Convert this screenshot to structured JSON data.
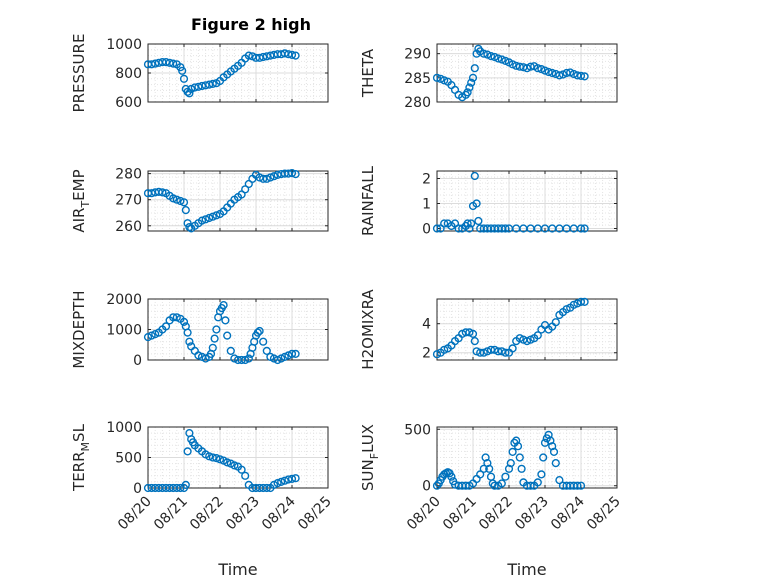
{
  "figure": {
    "title": "Figure 2 high",
    "marker_color": "#0072BD",
    "grid": "on",
    "marker": "open-circle"
  },
  "chart_data": [
    {
      "type": "scatter",
      "ylabel": "PRESSURE",
      "xlabel": "",
      "ylim": [
        600,
        1000
      ],
      "yticks": [
        600,
        800,
        1000
      ],
      "xlim": [
        0,
        5
      ],
      "series": [
        {
          "x": [
            0.0,
            0.1,
            0.2,
            0.3,
            0.4,
            0.5,
            0.6,
            0.7,
            0.8,
            0.9,
            0.95,
            1.0,
            1.05,
            1.1,
            1.15,
            1.2,
            1.3,
            1.4,
            1.5,
            1.6,
            1.7,
            1.8,
            1.9,
            2.0,
            2.1,
            2.2,
            2.3,
            2.4,
            2.5,
            2.6,
            2.7,
            2.8,
            2.9,
            3.0,
            3.1,
            3.2,
            3.3,
            3.4,
            3.5,
            3.6,
            3.7,
            3.8,
            3.9,
            4.0,
            4.1
          ],
          "y": [
            860,
            860,
            865,
            870,
            875,
            875,
            870,
            865,
            860,
            840,
            815,
            760,
            690,
            670,
            660,
            690,
            700,
            705,
            710,
            715,
            720,
            725,
            730,
            745,
            770,
            790,
            810,
            830,
            850,
            870,
            900,
            920,
            915,
            905,
            905,
            910,
            915,
            920,
            925,
            930,
            930,
            935,
            930,
            925,
            920
          ]
        }
      ]
    },
    {
      "type": "scatter",
      "ylabel": "THETA",
      "xlabel": "",
      "ylim": [
        280,
        292
      ],
      "yticks": [
        280,
        285,
        290
      ],
      "xlim": [
        0,
        5
      ],
      "series": [
        {
          "x": [
            0.0,
            0.1,
            0.2,
            0.3,
            0.4,
            0.5,
            0.6,
            0.7,
            0.8,
            0.85,
            0.9,
            0.95,
            1.0,
            1.05,
            1.1,
            1.15,
            1.2,
            1.3,
            1.4,
            1.5,
            1.6,
            1.7,
            1.8,
            1.9,
            2.0,
            2.1,
            2.2,
            2.3,
            2.4,
            2.5,
            2.6,
            2.7,
            2.8,
            2.9,
            3.0,
            3.1,
            3.2,
            3.3,
            3.4,
            3.5,
            3.6,
            3.7,
            3.8,
            3.9,
            4.0,
            4.1
          ],
          "y": [
            285,
            284.8,
            284.5,
            284.2,
            283.5,
            282.5,
            281.5,
            281,
            281.5,
            282,
            283,
            284,
            285,
            287,
            290,
            291,
            290.5,
            290,
            289.8,
            289.5,
            289.3,
            289,
            288.8,
            288.5,
            288.2,
            287.8,
            287.5,
            287.3,
            287.2,
            287,
            287.3,
            287.4,
            287,
            286.8,
            286.5,
            286.2,
            286,
            285.8,
            285.5,
            285.7,
            286,
            286.1,
            285.8,
            285.5,
            285.4,
            285.3
          ]
        }
      ]
    },
    {
      "type": "scatter",
      "ylabel": "AIR_TEMP",
      "xlabel": "",
      "ylim": [
        258,
        281
      ],
      "yticks": [
        260,
        270,
        280
      ],
      "xlim": [
        0,
        5
      ],
      "series": [
        {
          "x": [
            0.0,
            0.1,
            0.2,
            0.3,
            0.4,
            0.5,
            0.6,
            0.7,
            0.8,
            0.9,
            1.0,
            1.05,
            1.1,
            1.15,
            1.2,
            1.3,
            1.4,
            1.5,
            1.6,
            1.7,
            1.8,
            1.9,
            2.0,
            2.1,
            2.2,
            2.3,
            2.4,
            2.5,
            2.6,
            2.7,
            2.8,
            2.9,
            3.0,
            3.1,
            3.2,
            3.3,
            3.4,
            3.5,
            3.6,
            3.7,
            3.8,
            3.9,
            4.0,
            4.1
          ],
          "y": [
            272.5,
            272.5,
            272.8,
            273,
            272.8,
            272.5,
            271.5,
            270.5,
            270,
            269.5,
            269,
            266,
            261,
            259.5,
            259,
            260,
            261,
            262,
            262.5,
            263,
            263.5,
            264,
            264.5,
            265.5,
            267,
            268.5,
            270,
            271,
            272,
            274,
            276,
            278,
            279.5,
            278.5,
            278,
            278,
            278.5,
            279,
            279.5,
            279.8,
            280,
            280,
            280.2,
            279.8
          ]
        }
      ]
    },
    {
      "type": "scatter",
      "ylabel": "RAINFALL",
      "xlabel": "",
      "ylim": [
        -0.1,
        2.3
      ],
      "yticks": [
        0,
        1,
        2
      ],
      "xlim": [
        0,
        5
      ],
      "series": [
        {
          "x": [
            0.0,
            0.1,
            0.2,
            0.3,
            0.4,
            0.5,
            0.6,
            0.7,
            0.8,
            0.85,
            0.9,
            0.95,
            1.0,
            1.05,
            1.1,
            1.15,
            1.2,
            1.3,
            1.4,
            1.5,
            1.6,
            1.7,
            1.8,
            1.9,
            2.0,
            2.2,
            2.4,
            2.6,
            2.8,
            3.0,
            3.2,
            3.4,
            3.6,
            3.8,
            4.0,
            4.1
          ],
          "y": [
            0,
            0,
            0.2,
            0.2,
            0.1,
            0.2,
            0,
            0,
            0.1,
            0.2,
            0,
            0.2,
            0.9,
            2.1,
            1.0,
            0.3,
            0,
            0,
            0,
            0,
            0,
            0,
            0,
            0,
            0,
            0,
            0,
            0,
            0,
            0,
            0,
            0,
            0,
            0,
            0,
            0
          ]
        }
      ]
    },
    {
      "type": "scatter",
      "ylabel": "MIXDEPTH",
      "xlabel": "",
      "ylim": [
        0,
        2000
      ],
      "yticks": [
        0,
        1000,
        2000
      ],
      "xlim": [
        0,
        5
      ],
      "series": [
        {
          "x": [
            0.0,
            0.1,
            0.2,
            0.3,
            0.4,
            0.5,
            0.6,
            0.7,
            0.8,
            0.9,
            1.0,
            1.05,
            1.1,
            1.15,
            1.2,
            1.3,
            1.4,
            1.5,
            1.6,
            1.7,
            1.75,
            1.8,
            1.85,
            1.9,
            1.95,
            2.0,
            2.05,
            2.1,
            2.15,
            2.2,
            2.3,
            2.4,
            2.5,
            2.6,
            2.7,
            2.8,
            2.85,
            2.9,
            2.95,
            3.0,
            3.05,
            3.1,
            3.2,
            3.3,
            3.4,
            3.5,
            3.6,
            3.7,
            3.8,
            3.9,
            4.0,
            4.1
          ],
          "y": [
            750,
            800,
            850,
            900,
            1000,
            1100,
            1300,
            1400,
            1400,
            1350,
            1250,
            1100,
            900,
            600,
            450,
            300,
            150,
            100,
            50,
            100,
            200,
            400,
            700,
            1000,
            1400,
            1600,
            1700,
            1800,
            1300,
            800,
            300,
            50,
            0,
            0,
            0,
            50,
            200,
            400,
            600,
            800,
            900,
            950,
            600,
            300,
            100,
            50,
            0,
            50,
            100,
            150,
            200,
            200
          ]
        }
      ]
    },
    {
      "type": "scatter",
      "ylabel": "H2OMIXRA",
      "xlabel": "",
      "ylim": [
        1.5,
        5.7
      ],
      "yticks": [
        2,
        4
      ],
      "xlim": [
        0,
        5
      ],
      "series": [
        {
          "x": [
            0.0,
            0.1,
            0.2,
            0.3,
            0.4,
            0.5,
            0.6,
            0.7,
            0.8,
            0.9,
            1.0,
            1.05,
            1.1,
            1.2,
            1.3,
            1.4,
            1.5,
            1.6,
            1.7,
            1.8,
            1.9,
            2.0,
            2.1,
            2.2,
            2.3,
            2.4,
            2.5,
            2.6,
            2.7,
            2.8,
            2.9,
            3.0,
            3.1,
            3.2,
            3.3,
            3.4,
            3.5,
            3.6,
            3.7,
            3.8,
            3.9,
            4.0,
            4.1
          ],
          "y": [
            1.9,
            2.0,
            2.2,
            2.3,
            2.5,
            2.8,
            3.0,
            3.3,
            3.4,
            3.4,
            3.3,
            2.8,
            2.1,
            2.0,
            2.0,
            2.1,
            2.2,
            2.2,
            2.1,
            2.1,
            2.0,
            2.0,
            2.3,
            2.8,
            3.0,
            2.9,
            2.8,
            2.9,
            3.0,
            3.2,
            3.6,
            3.9,
            3.6,
            3.8,
            4.1,
            4.6,
            4.8,
            5.0,
            5.1,
            5.3,
            5.4,
            5.5,
            5.5
          ]
        }
      ]
    },
    {
      "type": "scatter",
      "ylabel": "TERR_MSL",
      "xlabel": "Time",
      "ylim": [
        0,
        1000
      ],
      "yticks": [
        0,
        500,
        1000
      ],
      "xlim": [
        0,
        5
      ],
      "xticklabels": [
        "08/20",
        "08/21",
        "08/22",
        "08/23",
        "08/24",
        "08/25"
      ],
      "series": [
        {
          "x": [
            0.0,
            0.1,
            0.2,
            0.3,
            0.4,
            0.5,
            0.6,
            0.7,
            0.8,
            0.9,
            1.0,
            1.05,
            1.1,
            1.15,
            1.2,
            1.25,
            1.3,
            1.4,
            1.5,
            1.6,
            1.7,
            1.8,
            1.9,
            2.0,
            2.1,
            2.2,
            2.3,
            2.4,
            2.5,
            2.6,
            2.7,
            2.8,
            2.9,
            3.0,
            3.1,
            3.2,
            3.3,
            3.4,
            3.5,
            3.6,
            3.7,
            3.8,
            3.9,
            4.0,
            4.1
          ],
          "y": [
            0,
            0,
            0,
            0,
            0,
            0,
            0,
            0,
            0,
            0,
            0,
            50,
            600,
            900,
            800,
            750,
            700,
            650,
            600,
            550,
            520,
            500,
            490,
            470,
            450,
            420,
            400,
            370,
            350,
            300,
            200,
            50,
            0,
            0,
            0,
            0,
            0,
            0,
            50,
            80,
            100,
            120,
            140,
            150,
            160
          ]
        }
      ]
    },
    {
      "type": "scatter",
      "ylabel": "SUN_FLUX",
      "xlabel": "Time",
      "ylim": [
        -20,
        520
      ],
      "yticks": [
        0,
        500
      ],
      "xlim": [
        0,
        5
      ],
      "xticklabels": [
        "08/20",
        "08/21",
        "08/22",
        "08/23",
        "08/24",
        "08/25"
      ],
      "series": [
        {
          "x": [
            0.0,
            0.05,
            0.1,
            0.15,
            0.2,
            0.25,
            0.3,
            0.35,
            0.4,
            0.45,
            0.5,
            0.6,
            0.7,
            0.8,
            0.9,
            1.0,
            1.1,
            1.2,
            1.3,
            1.35,
            1.4,
            1.45,
            1.5,
            1.55,
            1.6,
            1.7,
            1.8,
            1.9,
            2.0,
            2.05,
            2.1,
            2.15,
            2.2,
            2.25,
            2.3,
            2.35,
            2.4,
            2.5,
            2.6,
            2.7,
            2.8,
            2.9,
            2.95,
            3.0,
            3.05,
            3.1,
            3.15,
            3.2,
            3.25,
            3.3,
            3.4,
            3.5,
            3.6,
            3.7,
            3.8,
            3.9,
            4.0
          ],
          "y": [
            0,
            20,
            50,
            80,
            100,
            110,
            120,
            110,
            80,
            40,
            10,
            0,
            0,
            0,
            0,
            20,
            60,
            100,
            150,
            250,
            200,
            150,
            80,
            20,
            0,
            0,
            20,
            80,
            150,
            200,
            300,
            380,
            400,
            350,
            250,
            150,
            30,
            0,
            0,
            0,
            30,
            100,
            250,
            380,
            420,
            450,
            400,
            350,
            300,
            200,
            50,
            0,
            0,
            0,
            0,
            0,
            0
          ]
        }
      ]
    }
  ],
  "ylabel_parts": {
    "air_temp": {
      "main": "AIR",
      "sub": "T",
      "rest": "EMP"
    },
    "terr_msl": {
      "main": "TERR",
      "sub": "M",
      "rest": "SL"
    },
    "sun_flux": {
      "main": "SUN",
      "sub": "F",
      "rest": "LUX"
    }
  }
}
